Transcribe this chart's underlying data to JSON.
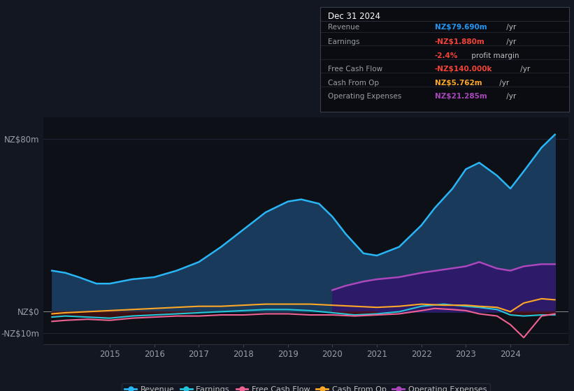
{
  "bg_color": "#131722",
  "plot_bg_color": "#0d1117",
  "grid_color": "#1e2433",
  "ylim": [
    -15,
    90
  ],
  "yticks": [
    -10,
    0,
    80
  ],
  "ytick_labels": [
    "-NZ$10m",
    "NZ$0",
    "NZ$80m"
  ],
  "xlabel_years": [
    2015,
    2016,
    2017,
    2018,
    2019,
    2020,
    2021,
    2022,
    2023,
    2024
  ],
  "revenue_color": "#29b6f6",
  "revenue_fill_color": "#1a3a5c",
  "earnings_color": "#26c6da",
  "fcf_color": "#f06292",
  "cashfromop_color": "#ffa726",
  "opex_color": "#ab47bc",
  "opex_fill_color": "#2d1b69",
  "legend_items": [
    {
      "label": "Revenue",
      "color": "#29b6f6"
    },
    {
      "label": "Earnings",
      "color": "#26c6da"
    },
    {
      "label": "Free Cash Flow",
      "color": "#f06292"
    },
    {
      "label": "Cash From Op",
      "color": "#ffa726"
    },
    {
      "label": "Operating Expenses",
      "color": "#ab47bc"
    }
  ],
  "revenue_x": [
    2013.7,
    2014.0,
    2014.3,
    2014.7,
    2015.0,
    2015.5,
    2016.0,
    2016.5,
    2017.0,
    2017.5,
    2018.0,
    2018.5,
    2019.0,
    2019.3,
    2019.7,
    2020.0,
    2020.3,
    2020.7,
    2021.0,
    2021.5,
    2022.0,
    2022.3,
    2022.7,
    2023.0,
    2023.3,
    2023.7,
    2024.0,
    2024.3,
    2024.7,
    2025.0
  ],
  "revenue_y": [
    19,
    18,
    16,
    13,
    13,
    15,
    16,
    19,
    23,
    30,
    38,
    46,
    51,
    52,
    50,
    44,
    36,
    27,
    26,
    30,
    40,
    48,
    57,
    66,
    69,
    63,
    57,
    65,
    76,
    82
  ],
  "earnings_x": [
    2013.7,
    2014.0,
    2014.5,
    2015.0,
    2015.5,
    2016.0,
    2016.5,
    2017.0,
    2017.5,
    2018.0,
    2018.5,
    2019.0,
    2019.5,
    2020.0,
    2020.5,
    2021.0,
    2021.5,
    2022.0,
    2022.5,
    2023.0,
    2023.3,
    2023.7,
    2024.0,
    2024.3,
    2024.7,
    2025.0
  ],
  "earnings_y": [
    -2.5,
    -2,
    -2.5,
    -3,
    -2,
    -1.5,
    -1,
    -0.5,
    0,
    0.5,
    1,
    1,
    0.5,
    -0.5,
    -1.5,
    -1,
    0,
    2.5,
    3.5,
    2.5,
    2,
    1,
    -1.5,
    -2,
    -1.5,
    -1.5
  ],
  "fcf_x": [
    2013.7,
    2014.0,
    2014.5,
    2015.0,
    2015.5,
    2016.0,
    2016.5,
    2017.0,
    2017.5,
    2018.0,
    2018.5,
    2019.0,
    2019.5,
    2020.0,
    2020.5,
    2021.0,
    2021.5,
    2022.0,
    2022.3,
    2022.7,
    2023.0,
    2023.3,
    2023.7,
    2024.0,
    2024.3,
    2024.7,
    2025.0
  ],
  "fcf_y": [
    -4.5,
    -4,
    -3.5,
    -4,
    -3,
    -2.5,
    -2,
    -2,
    -1.5,
    -1.5,
    -1,
    -1,
    -1.5,
    -1.5,
    -2,
    -1.5,
    -1,
    0.5,
    1.5,
    1,
    0.5,
    -1,
    -2,
    -6,
    -12,
    -2,
    -1
  ],
  "cashfromop_x": [
    2013.7,
    2014.0,
    2014.5,
    2015.0,
    2015.5,
    2016.0,
    2016.5,
    2017.0,
    2017.5,
    2018.0,
    2018.5,
    2019.0,
    2019.5,
    2020.0,
    2020.5,
    2021.0,
    2021.5,
    2022.0,
    2022.5,
    2023.0,
    2023.3,
    2023.7,
    2024.0,
    2024.3,
    2024.7,
    2025.0
  ],
  "cashfromop_y": [
    -1,
    -0.5,
    0,
    0.5,
    1,
    1.5,
    2,
    2.5,
    2.5,
    3,
    3.5,
    3.5,
    3.5,
    3,
    2.5,
    2,
    2.5,
    3.5,
    3,
    3,
    2.5,
    2,
    0,
    4,
    6,
    5.5
  ],
  "opex_x": [
    2020.0,
    2020.3,
    2020.7,
    2021.0,
    2021.5,
    2022.0,
    2022.5,
    2023.0,
    2023.3,
    2023.7,
    2024.0,
    2024.3,
    2024.7,
    2025.0
  ],
  "opex_y": [
    10,
    12,
    14,
    15,
    16,
    18,
    19.5,
    21,
    23,
    20,
    19,
    21,
    22,
    22
  ]
}
